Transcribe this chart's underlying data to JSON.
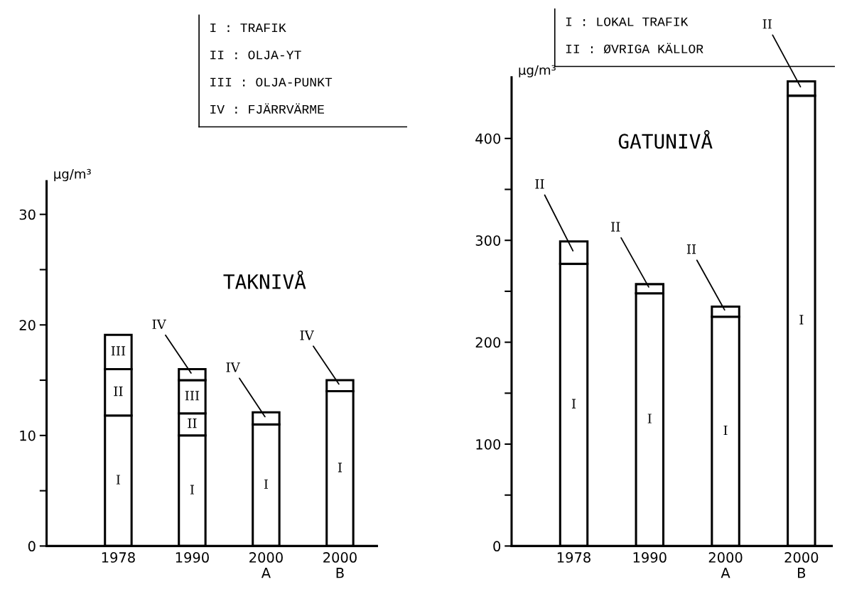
{
  "chart_data": [
    {
      "type": "bar",
      "stacked": true,
      "title": "TAKNIVÅ",
      "ylabel": "µg/m³",
      "categories": [
        "1978",
        "1990",
        "2000\nA",
        "2000\nB"
      ],
      "series": [
        {
          "name": "I",
          "color": "#ffffff",
          "values": [
            11.8,
            10,
            11,
            14
          ]
        },
        {
          "name": "II",
          "color": "#ffffff",
          "values": [
            4.2,
            2,
            null,
            null
          ]
        },
        {
          "name": "III",
          "color": "#ffffff",
          "values": [
            3.1,
            3,
            null,
            null
          ]
        },
        {
          "name": "IV",
          "color": "#ffffff",
          "values": [
            null,
            1,
            1.1,
            1
          ]
        }
      ],
      "ylim": [
        0,
        33
      ],
      "yticks": [
        0,
        {
          "value": 5,
          "label": null
        },
        10,
        {
          "value": 15,
          "label": null
        },
        20,
        {
          "value": 25,
          "label": null
        },
        30
      ],
      "grid": false,
      "legend": false,
      "annotations": [
        "I : TRAFIK",
        "II : OLJA-YT",
        "III : OLJA-PUNKT",
        "IV : FJÄRRVÄRME"
      ]
    },
    {
      "type": "bar",
      "stacked": true,
      "title": "GATUNIVÅ",
      "ylabel": "µg/m³",
      "categories": [
        "1978",
        "1990",
        "2000\nA",
        "2000\nB"
      ],
      "series": [
        {
          "name": "I",
          "color": "#ffffff",
          "values": [
            277,
            248,
            225,
            442
          ]
        },
        {
          "name": "II",
          "color": "#ffffff",
          "values": [
            22,
            9,
            10,
            14
          ]
        }
      ],
      "ylim": [
        0,
        460
      ],
      "yticks": [
        0,
        {
          "value": 50,
          "label": null
        },
        100,
        {
          "value": 150,
          "label": null
        },
        200,
        {
          "value": 250,
          "label": null
        },
        300,
        {
          "value": 350,
          "label": null
        },
        400
      ],
      "grid": false,
      "legend": false,
      "annotations": [
        "I : LOKAL TRAFIK",
        "II : ØVRIGA KÄLLOR"
      ]
    }
  ]
}
